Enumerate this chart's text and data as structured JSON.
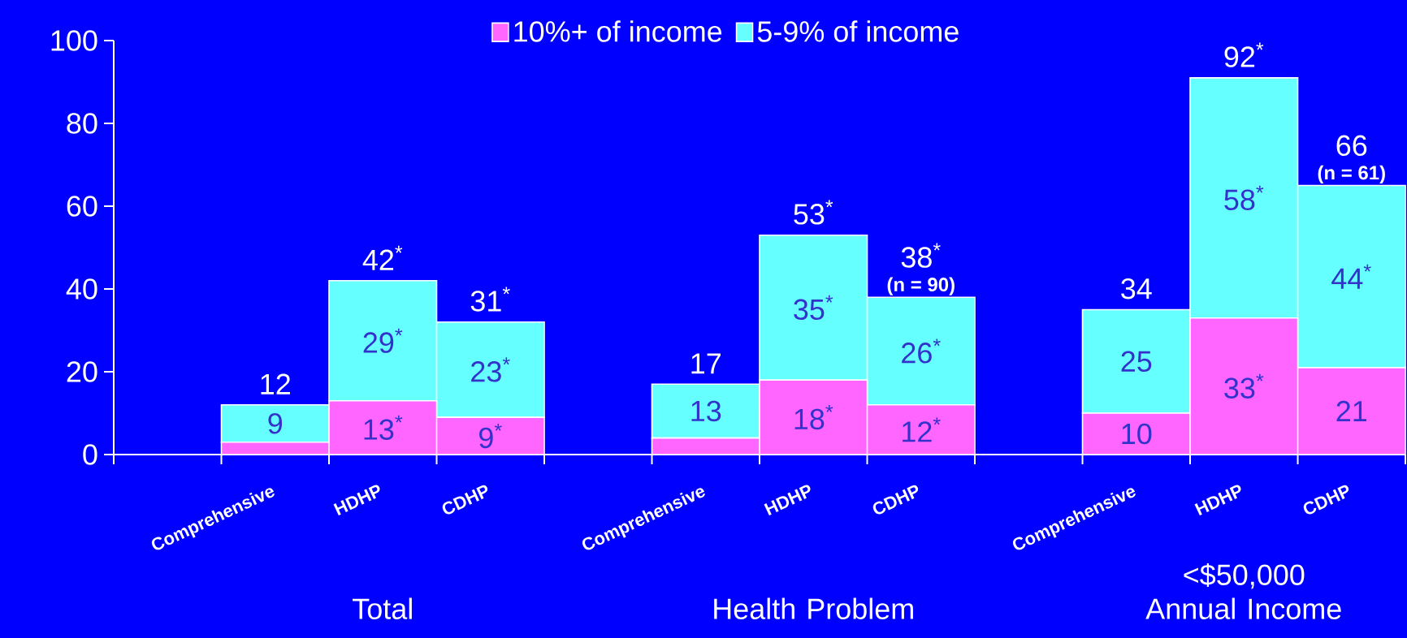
{
  "chart_data": {
    "type": "bar",
    "stacked": true,
    "legend": "top",
    "categories": [
      null,
      "Comprehensive",
      "HDHP",
      "CDHP",
      null,
      "Comprehensive",
      "HDHP",
      "CDHP",
      null,
      "Comprehensive",
      "HDHP",
      "CDHP"
    ],
    "series": [
      {
        "name": "10%+ of income",
        "color": "#ff66ff",
        "values": [
          null,
          3,
          13,
          9,
          null,
          4,
          18,
          12,
          null,
          10,
          33,
          21
        ],
        "value_labels": [
          null,
          null,
          "13$^{*}$",
          "9$^{*}$",
          null,
          null,
          "18$^{*}$",
          "12$^{*}$",
          null,
          "10",
          "33$^{*}$",
          "21"
        ]
      },
      {
        "name": "5-9% of income",
        "color": "#66ffff",
        "values": [
          null,
          9,
          29,
          23,
          null,
          13,
          35,
          26,
          null,
          25,
          58,
          44
        ],
        "value_labels": [
          null,
          "9",
          "29$^{*}$",
          "23$^{*}$",
          null,
          "13",
          "35$^{*}$",
          "26$^{*}$",
          null,
          "25",
          "58$^{*}$",
          "44$^{*}$"
        ]
      }
    ],
    "totals": [
      null,
      "12",
      "42$^{*}$",
      "31$^{*}$",
      null,
      "17",
      "53$^{*}$",
      "38$^{*}$",
      null,
      "34",
      "92$^{*}$",
      "66"
    ],
    "ylim": [
      0,
      100
    ],
    "yticks": [
      0,
      20,
      40,
      60,
      80,
      100
    ],
    "annotations": [
      "Total",
      "Health Problem",
      "<$50,000 Annual Income",
      "(n = 90)",
      "(n = 61)"
    ]
  }
}
